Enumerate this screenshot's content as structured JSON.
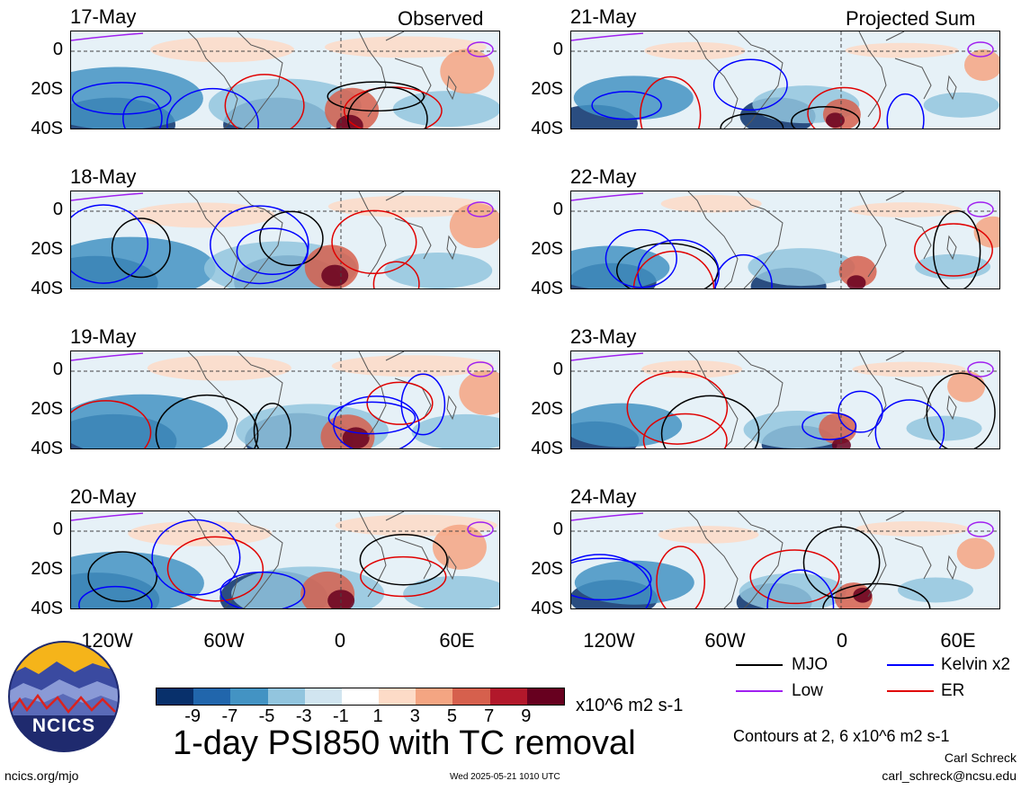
{
  "columns": {
    "left": {
      "tag": "Observed",
      "dates": [
        "17-May",
        "18-May",
        "19-May",
        "20-May"
      ]
    },
    "right": {
      "tag": "Projected Sum",
      "dates": [
        "21-May",
        "22-May",
        "23-May",
        "24-May"
      ]
    }
  },
  "lat_labels": [
    "0",
    "20S",
    "40S"
  ],
  "lon_labels": [
    "120W",
    "60W",
    "0",
    "60E"
  ],
  "legend": {
    "items": [
      {
        "label": "MJO",
        "color": "#000000"
      },
      {
        "label": "Kelvin x2",
        "color": "#0000ff"
      },
      {
        "label": "Low",
        "color": "#a020f0"
      },
      {
        "label": "ER",
        "color": "#e00000"
      }
    ],
    "contours_note": "Contours at 2, 6 x10^6 m2 s-1"
  },
  "colorbar": {
    "labels": [
      "-9",
      "-7",
      "-5",
      "-3",
      "-1",
      "1",
      "3",
      "5",
      "7",
      "9"
    ],
    "colors": [
      "#08306b",
      "#2166ac",
      "#4393c3",
      "#92c5de",
      "#d1e5f0",
      "#ffffff",
      "#fddbc7",
      "#f4a582",
      "#d6604d",
      "#b2182b",
      "#67001f"
    ],
    "units": "x10^6 m2 s-1"
  },
  "title": "1-day PSI850 with TC removal",
  "logo_text": "NCICS",
  "footer": {
    "url": "ncics.org/mjo",
    "timestamp": "Wed 2025-05-21 1010 UTC",
    "author": "Carl Schreck",
    "email": "carl_schreck@ncsu.edu"
  }
}
